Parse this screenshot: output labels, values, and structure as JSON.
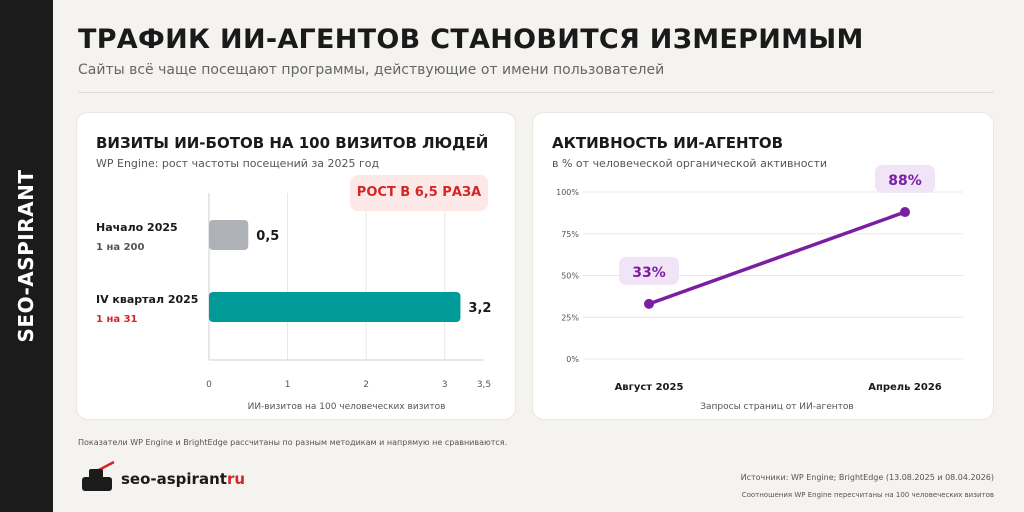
{
  "side_label": "SEO-ASPIRANT",
  "title": "ТРАФИК ИИ-АГЕНТОВ СТАНОВИТСЯ ИЗМЕРИМЫМ",
  "subtitle": "Сайты всё чаще посещают программы, действующие от имени пользователей",
  "colors": {
    "teal": "#009b98",
    "gray_bar": "#aeb2b6",
    "purple": "#7b1fa2",
    "red": "#d32626",
    "dark": "#1b1b1b"
  },
  "chart_data": [
    {
      "type": "bar",
      "title": "ВИЗИТЫ ИИ-БОТОВ НА 100 ВИЗИТОВ ЛЮДЕЙ",
      "subtitle": "WP Engine: рост частоты посещений за 2025 год",
      "badge": "РОСТ В 6,5 РАЗА",
      "orientation": "horizontal",
      "categories": [
        "Начало 2025",
        "IV квартал 2025"
      ],
      "category_notes": [
        "1 на 200",
        "1 на 31"
      ],
      "values": [
        0.5,
        3.2
      ],
      "value_labels": [
        "0,5",
        "3,2"
      ],
      "xlabel": "ИИ-визитов на 100 человеческих визитов",
      "xlim": [
        0,
        3.5
      ],
      "ticks": [
        "0",
        "1",
        "2",
        "3",
        "3,5"
      ],
      "grid": true
    },
    {
      "type": "line",
      "title": "АКТИВНОСТЬ ИИ-АГЕНТОВ",
      "subtitle": "в % от человеческой органической активности",
      "x": [
        "Август 2025",
        "Апрель 2026"
      ],
      "values": [
        33,
        88
      ],
      "value_labels": [
        "33%",
        "88%"
      ],
      "xlabel": "Запросы страниц от ИИ-агентов",
      "ylim": [
        0,
        100
      ],
      "ticks": [
        "0%",
        "25%",
        "50%",
        "75%",
        "100%"
      ],
      "grid": true
    }
  ],
  "footnote": "Показатели WP Engine и BrightEdge рассчитаны по разным методикам и напрямую не сравниваются.",
  "brand": {
    "name": "seo-aspirant",
    "tld": "ru"
  },
  "sources": "Источники: WP Engine; BrightEdge (13.08.2025 и 08.04.2026)",
  "note": "Соотношения WP Engine пересчитаны на 100 человеческих визитов"
}
